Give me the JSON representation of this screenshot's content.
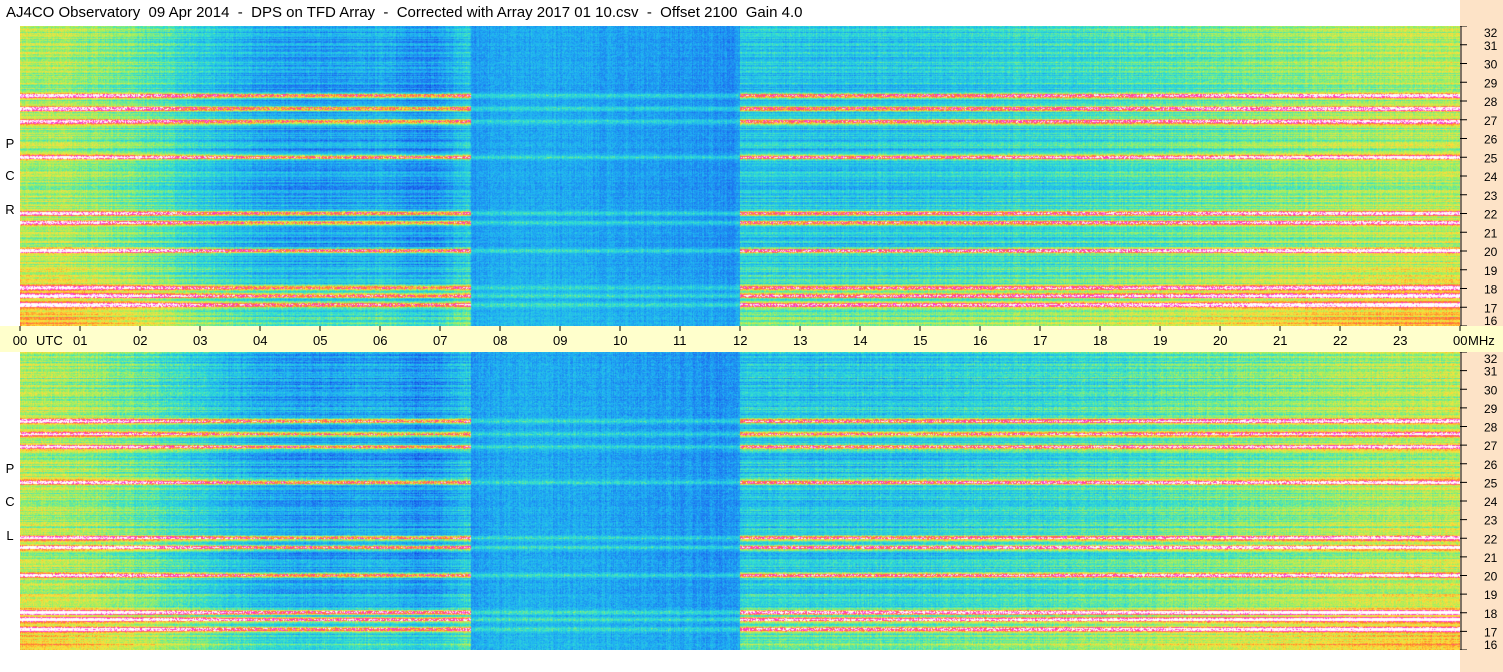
{
  "title": "AJ4CO Observatory  09 Apr 2014  -  DPS on TFD Array  -  Corrected with Array 2017 01 10.csv  -  Offset 2100  Gain 4.0",
  "chart_data": {
    "type": "heatmap",
    "title": "AJ4CO Observatory  09 Apr 2014  -  DPS on TFD Array  -  Corrected with Array 2017 01 10.csv  -  Offset 2100  Gain 4.0",
    "x_axis": {
      "unit_label": "UTC",
      "ticks": [
        "00",
        "01",
        "02",
        "03",
        "04",
        "05",
        "06",
        "07",
        "08",
        "09",
        "10",
        "11",
        "12",
        "13",
        "14",
        "15",
        "16",
        "17",
        "18",
        "19",
        "20",
        "21",
        "22",
        "23",
        "00"
      ],
      "range_hours": [
        0,
        24
      ]
    },
    "y_axis": {
      "unit_label": "MHz",
      "ticks": [
        "32",
        "31",
        "30",
        "29",
        "28",
        "27",
        "26",
        "25",
        "24",
        "23",
        "22",
        "21",
        "20",
        "19",
        "18",
        "17",
        "16"
      ],
      "range_mhz": [
        16,
        32
      ]
    },
    "panels": [
      {
        "name": "RCP",
        "label_letters": [
          "P",
          "C",
          "R"
        ]
      },
      {
        "name": "LCP",
        "label_letters": [
          "P",
          "C",
          "L"
        ]
      }
    ],
    "colormap": [
      "#0a2fd8",
      "#1e6ff0",
      "#1fb2f2",
      "#33e0d0",
      "#9ff060",
      "#ffe03a",
      "#ff7a2a",
      "#ff2ad8",
      "#ffffff"
    ],
    "strong_rfi_bands_mhz": [
      17.1,
      17.6,
      18.0,
      20.0,
      21.5,
      22.0,
      25.0,
      26.9,
      27.6,
      28.3
    ],
    "quiet_interval_utc": [
      7.5,
      12.0
    ]
  }
}
